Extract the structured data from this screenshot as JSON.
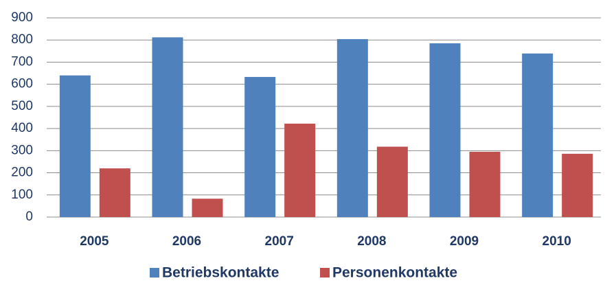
{
  "chart_data": {
    "type": "bar",
    "categories": [
      "2005",
      "2006",
      "2007",
      "2008",
      "2009",
      "2010"
    ],
    "series": [
      {
        "name": "Betriebskontakte",
        "color": "#4f81bd",
        "values": [
          640,
          812,
          633,
          804,
          785,
          739
        ]
      },
      {
        "name": "Personenkontakte",
        "color": "#c0504d",
        "values": [
          220,
          83,
          422,
          318,
          295,
          286
        ]
      }
    ],
    "ylim": [
      0,
      900
    ],
    "yticks": [
      0,
      100,
      200,
      300,
      400,
      500,
      600,
      700,
      800,
      900
    ],
    "grid": true,
    "legend": "bottom"
  }
}
